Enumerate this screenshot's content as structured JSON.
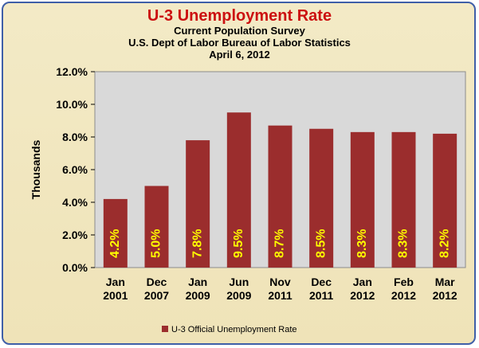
{
  "chart_data": {
    "type": "bar",
    "title": "U-3 Unemployment Rate",
    "subtitles": [
      "Current Population Survey",
      "U.S. Dept of Labor Bureau of Labor Statistics",
      "April 6, 2012"
    ],
    "ylabel": "Thousands",
    "xlabel": "",
    "ylim": [
      0,
      12
    ],
    "yticks": [
      "0.0%",
      "2.0%",
      "4.0%",
      "6.0%",
      "8.0%",
      "10.0%",
      "12.0%"
    ],
    "ytick_values": [
      0,
      2,
      4,
      6,
      8,
      10,
      12
    ],
    "grid": false,
    "categories": [
      [
        "Jan",
        "2001"
      ],
      [
        "Dec",
        "2007"
      ],
      [
        "Jan",
        "2009"
      ],
      [
        "Jun",
        "2009"
      ],
      [
        "Nov",
        "2011"
      ],
      [
        "Dec",
        "2011"
      ],
      [
        "Jan",
        "2012"
      ],
      [
        "Feb",
        "2012"
      ],
      [
        "Mar",
        "2012"
      ]
    ],
    "series": [
      {
        "name": "U-3 Official Unemployment Rate",
        "values": [
          4.2,
          5.0,
          7.8,
          9.5,
          8.7,
          8.5,
          8.3,
          8.3,
          8.2
        ],
        "data_labels": [
          "4.2%",
          "5.0%",
          "7.8%",
          "9.5%",
          "8.7%",
          "8.5%",
          "8.3%",
          "8.3%",
          "8.2%"
        ]
      }
    ],
    "legend_position": "bottom",
    "colors": {
      "bar": "#9b2d2d",
      "plot_bg": "#d9d9d9",
      "label": "#ffff00",
      "title": "#cc1111",
      "frame": "#3f5fa8"
    }
  }
}
